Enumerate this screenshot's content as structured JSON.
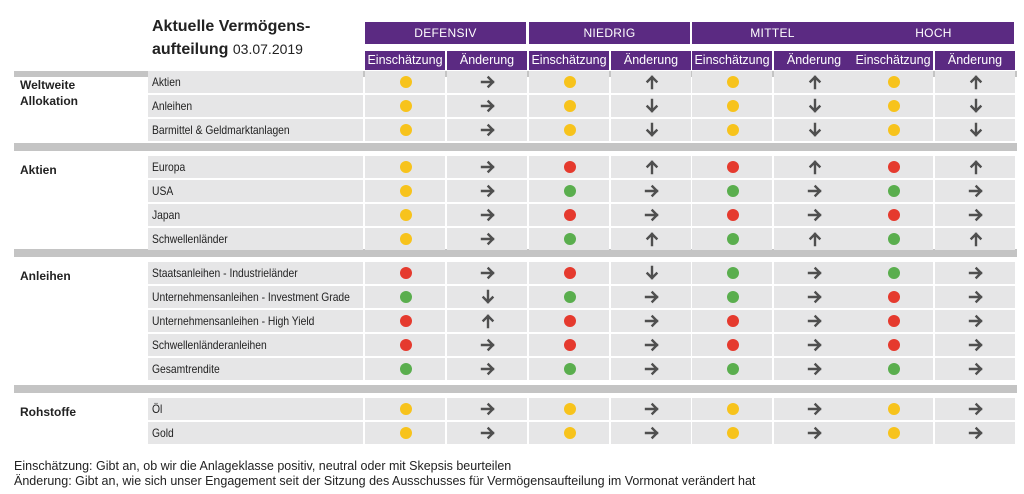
{
  "title": {
    "main": "Aktuelle Vermögens-\naufteilung",
    "date": "03.07.2019"
  },
  "colors": {
    "header": "#5b2a82",
    "yellow": "#f7c31c",
    "red": "#e53a2e",
    "green": "#5aae4e",
    "arrow": "#4f4f4f",
    "row_bg": "#e6e6e7",
    "separator": "#c4c4c4"
  },
  "chart_data": {
    "type": "table",
    "profiles": [
      "DEFENSIV",
      "NIEDRIG",
      "MITTEL",
      "HOCH"
    ],
    "subcolumns": [
      "Einschätzung",
      "Änderung"
    ],
    "legend_keys": {
      "rating": [
        "yellow",
        "red",
        "green"
      ],
      "change": [
        "right",
        "up",
        "down"
      ]
    },
    "sections": [
      {
        "name": "Weltweite\nAllokation",
        "rows": [
          {
            "label": "Aktien",
            "values": [
              [
                "yellow",
                "right"
              ],
              [
                "yellow",
                "up"
              ],
              [
                "yellow",
                "up"
              ],
              [
                "yellow",
                "up"
              ]
            ]
          },
          {
            "label": "Anleihen",
            "values": [
              [
                "yellow",
                "right"
              ],
              [
                "yellow",
                "down"
              ],
              [
                "yellow",
                "down"
              ],
              [
                "yellow",
                "down"
              ]
            ]
          },
          {
            "label": "Barmittel & Geldmarktanlagen",
            "values": [
              [
                "yellow",
                "right"
              ],
              [
                "yellow",
                "down"
              ],
              [
                "yellow",
                "down"
              ],
              [
                "yellow",
                "down"
              ]
            ]
          }
        ]
      },
      {
        "name": "Aktien",
        "rows": [
          {
            "label": "Europa",
            "values": [
              [
                "yellow",
                "right"
              ],
              [
                "red",
                "up"
              ],
              [
                "red",
                "up"
              ],
              [
                "red",
                "up"
              ]
            ]
          },
          {
            "label": "USA",
            "values": [
              [
                "yellow",
                "right"
              ],
              [
                "green",
                "right"
              ],
              [
                "green",
                "right"
              ],
              [
                "green",
                "right"
              ]
            ]
          },
          {
            "label": "Japan",
            "values": [
              [
                "yellow",
                "right"
              ],
              [
                "red",
                "right"
              ],
              [
                "red",
                "right"
              ],
              [
                "red",
                "right"
              ]
            ]
          },
          {
            "label": "Schwellenländer",
            "values": [
              [
                "yellow",
                "right"
              ],
              [
                "green",
                "up"
              ],
              [
                "green",
                "up"
              ],
              [
                "green",
                "up"
              ]
            ]
          }
        ]
      },
      {
        "name": "Anleihen",
        "rows": [
          {
            "label": "Staatsanleihen - Industrieländer",
            "values": [
              [
                "red",
                "right"
              ],
              [
                "red",
                "down"
              ],
              [
                "green",
                "right"
              ],
              [
                "green",
                "right"
              ]
            ]
          },
          {
            "label": "Unternehmensanleihen - Investment Grade",
            "values": [
              [
                "green",
                "down"
              ],
              [
                "green",
                "right"
              ],
              [
                "green",
                "right"
              ],
              [
                "red",
                "right"
              ]
            ]
          },
          {
            "label": "Unternehmensanleihen - High Yield",
            "values": [
              [
                "red",
                "up"
              ],
              [
                "red",
                "right"
              ],
              [
                "red",
                "right"
              ],
              [
                "red",
                "right"
              ]
            ]
          },
          {
            "label": "Schwellenländeranleihen",
            "values": [
              [
                "red",
                "right"
              ],
              [
                "red",
                "right"
              ],
              [
                "red",
                "right"
              ],
              [
                "red",
                "right"
              ]
            ]
          },
          {
            "label": "Gesamtrendite",
            "values": [
              [
                "green",
                "right"
              ],
              [
                "green",
                "right"
              ],
              [
                "green",
                "right"
              ],
              [
                "green",
                "right"
              ]
            ]
          }
        ]
      },
      {
        "name": "Rohstoffe",
        "rows": [
          {
            "label": "Öl",
            "values": [
              [
                "yellow",
                "right"
              ],
              [
                "yellow",
                "right"
              ],
              [
                "yellow",
                "right"
              ],
              [
                "yellow",
                "right"
              ]
            ]
          },
          {
            "label": "Gold",
            "values": [
              [
                "yellow",
                "right"
              ],
              [
                "yellow",
                "right"
              ],
              [
                "yellow",
                "right"
              ],
              [
                "yellow",
                "right"
              ]
            ]
          }
        ]
      }
    ]
  },
  "footnotes": [
    "Einschätzung: Gibt an, ob wir die Anlageklasse positiv, neutral oder mit Skepsis beurteilen",
    "Änderung: Gibt an, wie sich unser Engagement seit der Sitzung des Ausschusses für Vermögensaufteilung im Vormonat verändert hat"
  ]
}
